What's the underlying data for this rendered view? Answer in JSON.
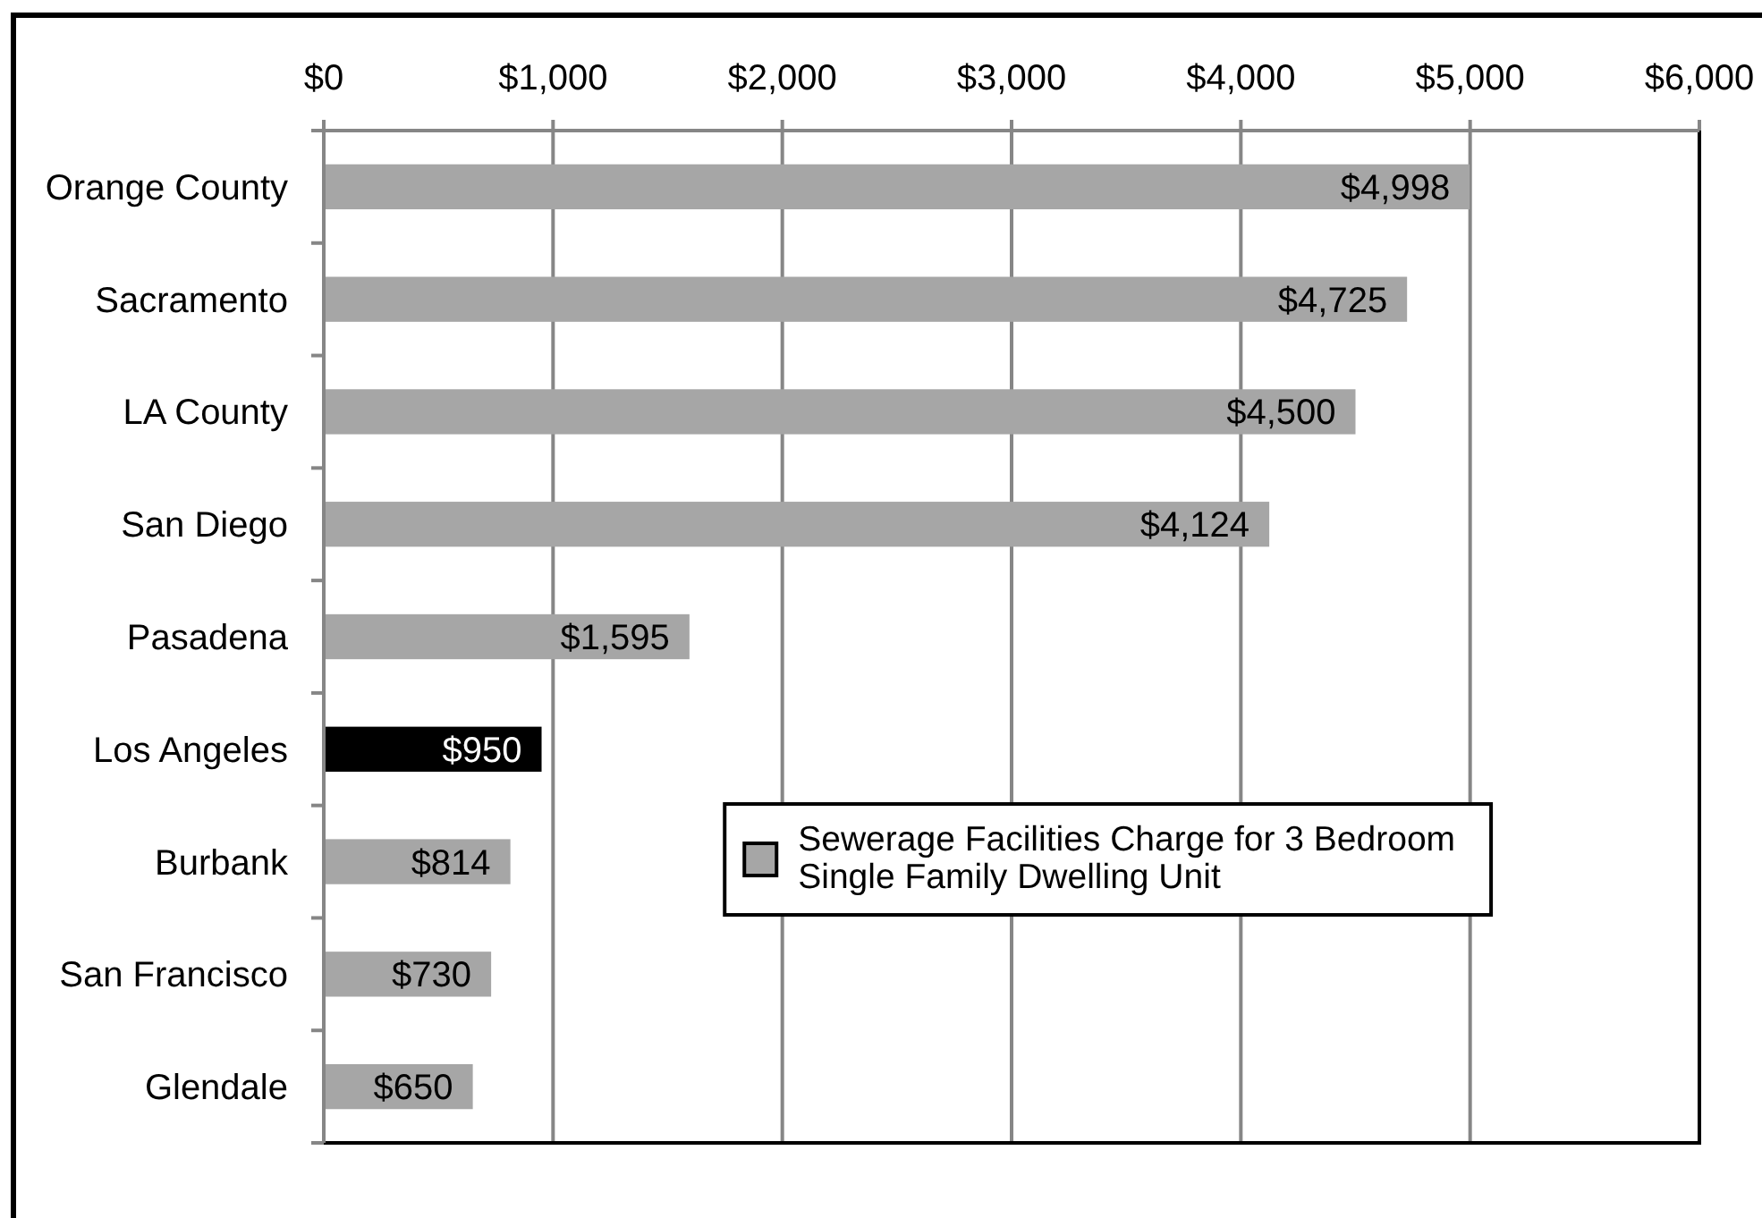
{
  "chart_data": {
    "type": "bar",
    "orientation": "horizontal",
    "categories": [
      "Orange County",
      "Sacramento",
      "LA County",
      "San Diego",
      "Pasadena",
      "Los Angeles",
      "Burbank",
      "San Francisco",
      "Glendale"
    ],
    "series": [
      {
        "name": "Sewerage Facilities Charge for 3 Bedroom Single Family Dwelling Unit",
        "color": "#a6a6a6",
        "colors": [
          "#a6a6a6",
          "#a6a6a6",
          "#a6a6a6",
          "#a6a6a6",
          "#a6a6a6",
          "#000000",
          "#a6a6a6",
          "#a6a6a6",
          "#a6a6a6"
        ],
        "values": [
          4998,
          4725,
          4500,
          4124,
          1595,
          950,
          814,
          730,
          650
        ],
        "value_labels": [
          "$4,998",
          "$4,725",
          "$4,500",
          "$4,124",
          "$1,595",
          "$950",
          "$814",
          "$730",
          "$650"
        ]
      }
    ],
    "xlim": [
      0,
      6000
    ],
    "xticks": [
      {
        "value": 0,
        "label": "$0"
      },
      {
        "value": 1000,
        "label": "$1,000"
      },
      {
        "value": 2000,
        "label": "$2,000"
      },
      {
        "value": 3000,
        "label": "$3,000"
      },
      {
        "value": 4000,
        "label": "$4,000"
      },
      {
        "value": 5000,
        "label": "$5,000"
      },
      {
        "value": 6000,
        "label": "$6,000"
      }
    ],
    "grid": "x",
    "legend": "center"
  }
}
